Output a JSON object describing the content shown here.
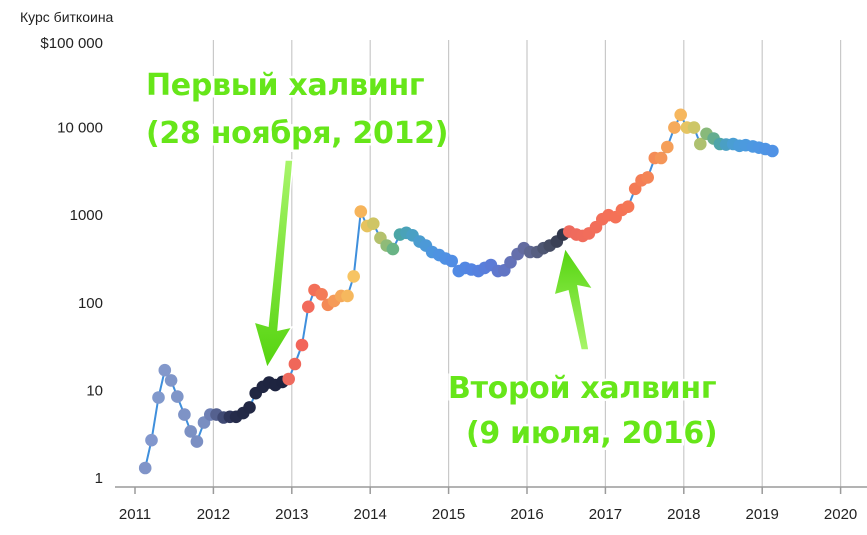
{
  "chart_data": {
    "type": "line",
    "ylabel": "Курс биткоина",
    "yscale": "log",
    "ylim": [
      1,
      100000
    ],
    "xlim": [
      2011,
      2020
    ],
    "y_ticks": [
      {
        "value": 1,
        "label": "1"
      },
      {
        "value": 10,
        "label": "10"
      },
      {
        "value": 100,
        "label": "100"
      },
      {
        "value": 1000,
        "label": "1000"
      },
      {
        "value": 10000,
        "label": "10 000"
      },
      {
        "value": 100000,
        "label": "$100 000"
      }
    ],
    "x_ticks": [
      {
        "value": 2011,
        "label": "2011"
      },
      {
        "value": 2012,
        "label": "2012"
      },
      {
        "value": 2013,
        "label": "2013"
      },
      {
        "value": 2014,
        "label": "2014"
      },
      {
        "value": 2015,
        "label": "2015"
      },
      {
        "value": 2016,
        "label": "2016"
      },
      {
        "value": 2017,
        "label": "2017"
      },
      {
        "value": 2018,
        "label": "2018"
      },
      {
        "value": 2019,
        "label": "2019"
      },
      {
        "value": 2020,
        "label": "2020"
      }
    ],
    "grid": {
      "x": true,
      "y": false
    },
    "line_color": "#3f8fdc",
    "series": [
      {
        "x": [
          2011.13,
          2011.21,
          2011.3,
          2011.38,
          2011.46,
          2011.54,
          2011.63,
          2011.71,
          2011.79,
          2011.88,
          2011.96,
          2012.04,
          2012.13,
          2012.21,
          2012.29,
          2012.38,
          2012.46,
          2012.54,
          2012.63,
          2012.71,
          2012.79,
          2012.88,
          2012.96,
          2013.04,
          2013.13,
          2013.21,
          2013.29,
          2013.38,
          2013.46,
          2013.54,
          2013.63,
          2013.71,
          2013.79,
          2013.88,
          2013.96,
          2014.04,
          2014.13,
          2014.21,
          2014.29,
          2014.38,
          2014.46,
          2014.54,
          2014.63,
          2014.71,
          2014.79,
          2014.88,
          2014.96,
          2015.04,
          2015.13,
          2015.21,
          2015.29,
          2015.38,
          2015.46,
          2015.54,
          2015.63,
          2015.71,
          2015.79,
          2015.88,
          2015.96,
          2016.04,
          2016.13,
          2016.21,
          2016.29,
          2016.38,
          2016.46,
          2016.54,
          2016.63,
          2016.71,
          2016.79,
          2016.88,
          2016.96,
          2017.04,
          2017.13,
          2017.21,
          2017.29,
          2017.38,
          2017.46,
          2017.54,
          2017.63,
          2017.71,
          2017.79,
          2017.88,
          2017.96,
          2018.04,
          2018.13,
          2018.21,
          2018.29,
          2018.38,
          2018.46,
          2018.54,
          2018.63,
          2018.71,
          2018.79,
          2018.88,
          2018.96,
          2019.04,
          2019.13
        ],
        "y": [
          1.3,
          2.7,
          8.3,
          17,
          13,
          8.5,
          5.3,
          3.4,
          2.6,
          4.3,
          5.3,
          5.3,
          4.9,
          5,
          5,
          5.5,
          6.4,
          9.3,
          11,
          12.3,
          11.5,
          12.5,
          13.5,
          20,
          33,
          90,
          140,
          125,
          95,
          105,
          120,
          120,
          200,
          1100,
          750,
          800,
          550,
          450,
          410,
          600,
          630,
          590,
          500,
          450,
          380,
          350,
          320,
          300,
          230,
          250,
          240,
          230,
          250,
          270,
          230,
          235,
          290,
          360,
          420,
          380,
          380,
          420,
          450,
          500,
          600,
          650,
          600,
          580,
          620,
          730,
          900,
          1000,
          950,
          1150,
          1250,
          2000,
          2500,
          2700,
          4500,
          4500,
          6000,
          10000,
          14000,
          10000,
          10000,
          6500,
          8500,
          7500,
          6500,
          6400,
          6500,
          6200,
          6300,
          6100,
          5900,
          5700,
          5400
        ],
        "colors": [
          "#8094c8",
          "#8297cd",
          "#8199cc",
          "#8398cb",
          "#8096c9",
          "#7f95c8",
          "#7e93c6",
          "#7c91c4",
          "#7b8fc3",
          "#7a8ec1",
          "#6f80b5",
          "#55618f",
          "#404a74",
          "#2e3559",
          "#252b4a",
          "#232946",
          "#222844",
          "#212743",
          "#202642",
          "#1f2541",
          "#1e2440",
          "#1d233f",
          "#ee6a5e",
          "#f0675a",
          "#f2655a",
          "#f26a5b",
          "#f36f58",
          "#f47b57",
          "#f48a56",
          "#f59a58",
          "#f5a85a",
          "#f6b85e",
          "#f7c463",
          "#f6b45b",
          "#e6c35f",
          "#cfc564",
          "#b4c16d",
          "#8fbb78",
          "#69b486",
          "#4ba6a6",
          "#4aa2b8",
          "#4aa0c4",
          "#4b9dcf",
          "#4c99d7",
          "#4d96de",
          "#4e93e1",
          "#4f90e3",
          "#508de4",
          "#518ae4",
          "#5287e3",
          "#5484e2",
          "#5681df",
          "#597edb",
          "#5c7bd6",
          "#5f78ce",
          "#6275c4",
          "#6472b8",
          "#656fac",
          "#636b9f",
          "#5e6690",
          "#575f81",
          "#4e5672",
          "#454c63",
          "#3b4156",
          "#31374b",
          "#ee6a5e",
          "#ef6b5d",
          "#f06c5c",
          "#f16d5b",
          "#f26e5a",
          "#f36f59",
          "#f47058",
          "#f57157",
          "#f57356",
          "#f57655",
          "#f47a55",
          "#f47e56",
          "#f48456",
          "#f48c57",
          "#f49558",
          "#f59f59",
          "#f5aa5b",
          "#f6b75e",
          "#e5c462",
          "#cdc667",
          "#aec16f",
          "#88b97a",
          "#64ad8f",
          "#4ea5a9",
          "#4a9fc4",
          "#4a9ed3",
          "#4b9cda",
          "#4c9ade",
          "#4d98e1",
          "#4e96e3",
          "#4f94e4",
          "#5092e5"
        ]
      }
    ],
    "annotations": [
      {
        "lines": [
          "Первый халвинг",
          "(28 ноября, 2012)"
        ],
        "x": 2012.91
      },
      {
        "lines": [
          "Второй халвинг",
          "(9 июля, 2016)"
        ],
        "x": 2016.52
      }
    ],
    "annotation_color": "#66e619"
  }
}
